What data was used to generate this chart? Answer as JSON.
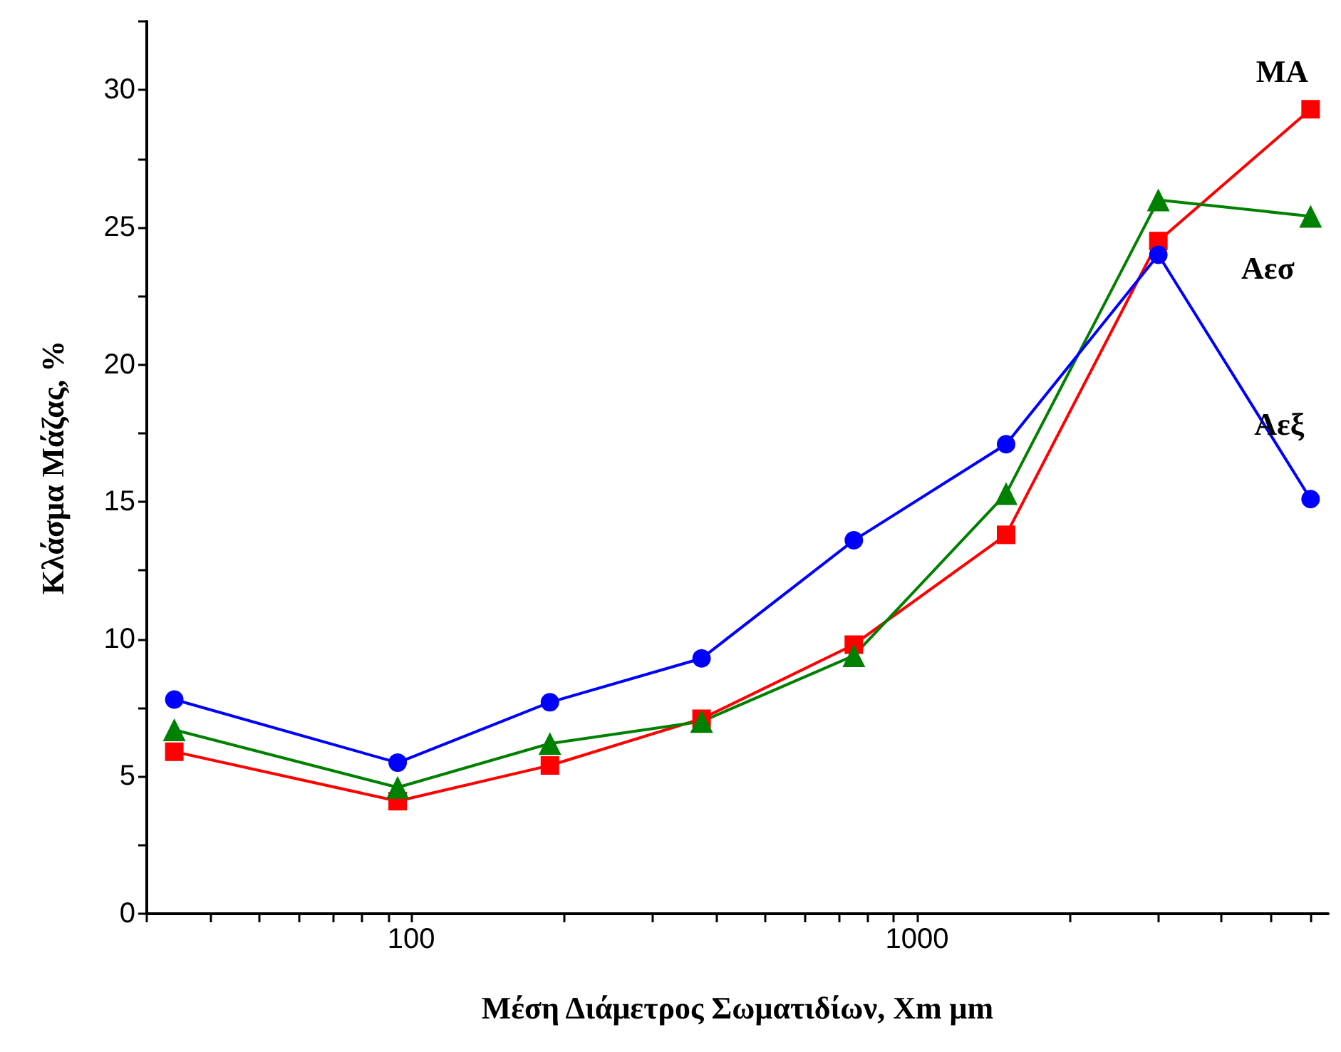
{
  "chart_data": {
    "type": "line",
    "xlabel": "Μέση Διάμετρος Σωματιδίων, Xm μm",
    "ylabel": "Κλάσμα Μάζας, %",
    "x": [
      34,
      94,
      188,
      375,
      750,
      1500,
      3000,
      6000
    ],
    "series": [
      {
        "name": "ΜΑ",
        "color": "#ff0000",
        "marker": "square",
        "values": [
          5.9,
          4.1,
          5.4,
          7.1,
          9.8,
          13.8,
          24.5,
          29.3
        ]
      },
      {
        "name": "Αεσ",
        "color": "#008000",
        "marker": "triangle",
        "values": [
          6.7,
          4.6,
          6.2,
          7.0,
          9.4,
          15.3,
          26.0,
          25.4
        ]
      },
      {
        "name": "Αεξ",
        "color": "#0000ff",
        "marker": "circle",
        "values": [
          7.8,
          5.5,
          7.7,
          9.3,
          13.6,
          17.1,
          24.0,
          15.1
        ]
      }
    ],
    "log": "x",
    "xlim": [
      30,
      6500
    ],
    "xticks": [
      {
        "value": 30,
        "label": null
      },
      {
        "value": 40,
        "label": null
      },
      {
        "value": 50,
        "label": null
      },
      {
        "value": 60,
        "label": null
      },
      {
        "value": 70,
        "label": null
      },
      {
        "value": 80,
        "label": null
      },
      {
        "value": 90,
        "label": null
      },
      100,
      {
        "value": 200,
        "label": null
      },
      {
        "value": 300,
        "label": null
      },
      {
        "value": 400,
        "label": null
      },
      {
        "value": 500,
        "label": null
      },
      {
        "value": 600,
        "label": null
      },
      {
        "value": 700,
        "label": null
      },
      {
        "value": 800,
        "label": null
      },
      {
        "value": 900,
        "label": null
      },
      1000,
      {
        "value": 2000,
        "label": null
      },
      {
        "value": 3000,
        "label": null
      },
      {
        "value": 4000,
        "label": null
      },
      {
        "value": 5000,
        "label": null
      },
      {
        "value": 6000,
        "label": null
      }
    ],
    "ylim": [
      0,
      32.5
    ],
    "yticks": [
      0,
      {
        "value": 2.5,
        "label": null
      },
      5,
      {
        "value": 7.5,
        "label": null
      },
      10,
      {
        "value": 12.5,
        "label": null
      },
      15,
      {
        "value": 17.5,
        "label": null
      },
      20,
      {
        "value": 22.5,
        "label": null
      },
      25,
      {
        "value": 27.5,
        "label": null
      },
      30,
      {
        "value": 32.5,
        "label": null
      }
    ],
    "grid": false,
    "legend": false,
    "line_style": "solid"
  }
}
